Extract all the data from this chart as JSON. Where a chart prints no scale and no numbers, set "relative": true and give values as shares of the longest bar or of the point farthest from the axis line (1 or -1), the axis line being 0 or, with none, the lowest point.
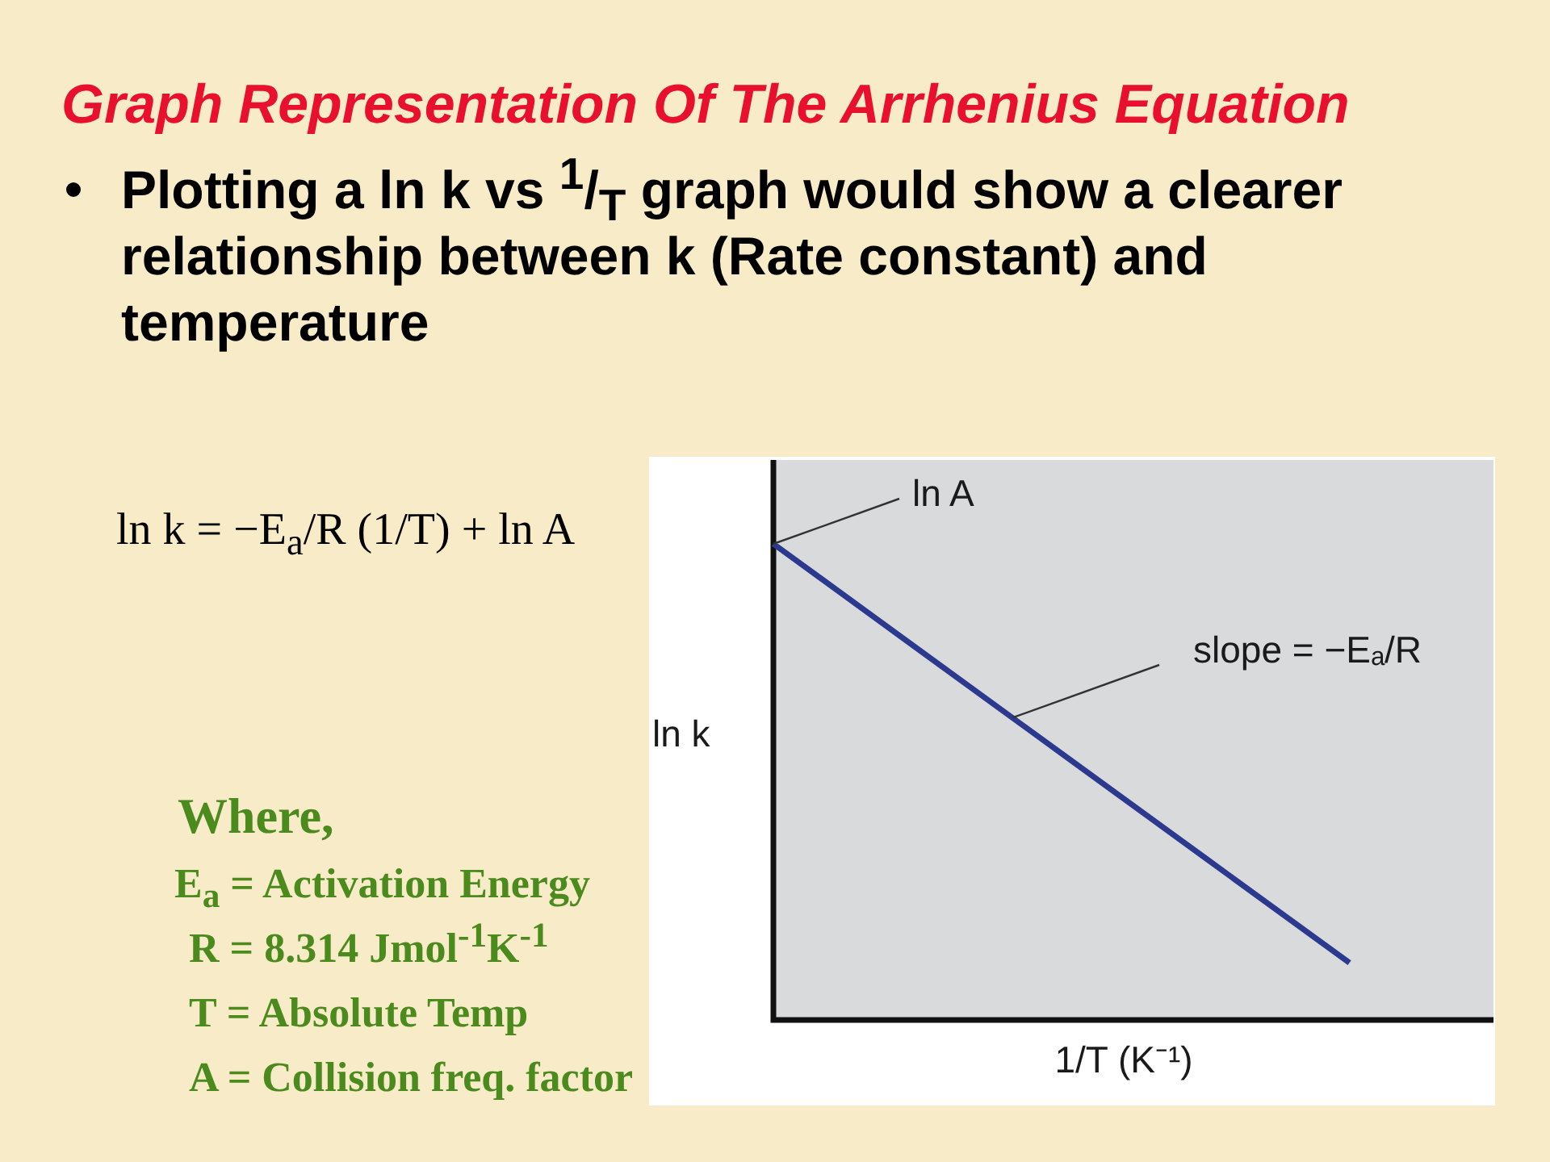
{
  "chart_data": {
    "type": "line",
    "title": "Graph Representation Of The Arrhenius Equation",
    "subtitle": "Plotting a ln k vs $^{1}$/$_{T}$ graph would show a clearer relationship between k (Rate constant) and temperature",
    "xlabel": "1/T (K⁻¹)",
    "ylabel": "ln k",
    "categories": [
      null,
      null,
      null,
      null,
      null,
      null
    ],
    "values": [
      1,
      0.78,
      0.56,
      0.34,
      0.12,
      null
    ],
    "color": "#2b3a8f",
    "relative": true,
    "annotations": [
      "ln k = −E$_{a}$/R (1/T) + ln A",
      "Where,",
      "E$_{a}$ = Activation Energy",
      "R = 8.314  Jmol$^{-1}$K$^{-1}$",
      "T = Absolute Temp",
      "A = Collision freq. factor",
      "ln A",
      "slope = −Eₐ/R"
    ]
  }
}
